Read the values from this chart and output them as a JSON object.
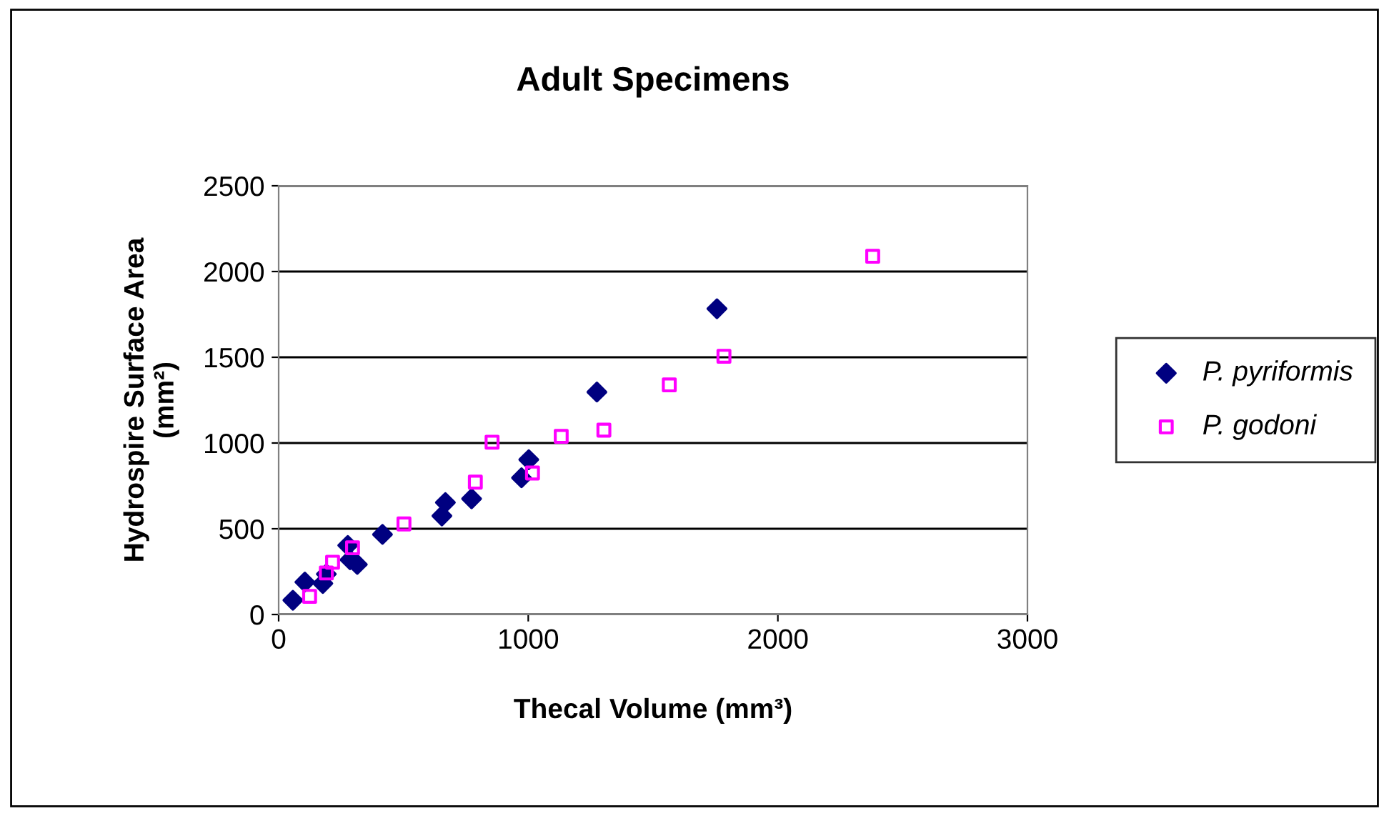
{
  "chart_data": {
    "type": "scatter",
    "title": "Adult Specimens",
    "xlabel": "Thecal Volume (mm³)",
    "ylabel": "Hydrospire Surface Area (mm²)",
    "xlim": [
      0,
      3000
    ],
    "xticks": [
      0,
      1000,
      2000,
      3000
    ],
    "ylim": [
      0,
      2500
    ],
    "yticks": [
      0,
      500,
      1000,
      1500,
      2000,
      2500
    ],
    "grid": "y",
    "legend": "right",
    "series": [
      {
        "name": "P. pyriformis",
        "color": "#000080",
        "marker": "diamond",
        "x": [
          57,
          105,
          177,
          191,
          277,
          286,
          315,
          416,
          654,
          668,
          773,
          973,
          1002,
          1275,
          1756
        ],
        "values": [
          83,
          189,
          181,
          236,
          403,
          319,
          292,
          467,
          575,
          653,
          675,
          797,
          903,
          1297,
          1783
        ]
      },
      {
        "name": "P. godoni",
        "color": "#ff00ff",
        "marker": "square",
        "x": [
          124,
          191,
          216,
          296,
          502,
          788,
          855,
          1017,
          1132,
          1303,
          1565,
          1784,
          2380
        ],
        "values": [
          106,
          242,
          305,
          389,
          528,
          772,
          1005,
          825,
          1039,
          1075,
          1339,
          1506,
          2089
        ]
      }
    ]
  }
}
